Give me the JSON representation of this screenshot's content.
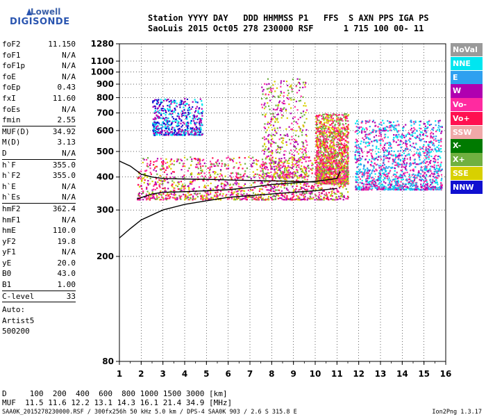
{
  "logo": {
    "line1": "Lowell",
    "line2": "DIGISONDE"
  },
  "header": {
    "line1": "Station YYYY DAY   DDD HHMMSS P1   FFS  S AXN PPS IGA PS",
    "line2": "SaoLuis 2015 Oct05 278 230000 RSF      1 715 100 00- 11"
  },
  "params": [
    {
      "k": "foF2",
      "v": "11.150"
    },
    {
      "k": "foF1",
      "v": "N/A"
    },
    {
      "k": "foF1p",
      "v": "N/A"
    },
    {
      "k": "foE",
      "v": "N/A"
    },
    {
      "k": "foEp",
      "v": "0.43"
    },
    {
      "k": "fxI",
      "v": "11.60"
    },
    {
      "k": "foEs",
      "v": "N/A"
    },
    {
      "k": "fmin",
      "v": "2.55"
    },
    {
      "sep": true
    },
    {
      "k": "MUF(D)",
      "v": "34.92"
    },
    {
      "k": "M(D)",
      "v": "3.13"
    },
    {
      "k": "D",
      "v": "N/A"
    },
    {
      "sep": true
    },
    {
      "k": "h`F",
      "v": "355.0"
    },
    {
      "k": "h`F2",
      "v": "355.0"
    },
    {
      "k": "h`E",
      "v": "N/A"
    },
    {
      "k": "h`Es",
      "v": "N/A"
    },
    {
      "sep": true
    },
    {
      "k": "hmF2",
      "v": "362.4"
    },
    {
      "k": "hmF1",
      "v": "N/A"
    },
    {
      "k": "hmE",
      "v": "110.0"
    },
    {
      "k": "yF2",
      "v": "19.8"
    },
    {
      "k": "yF1",
      "v": "N/A"
    },
    {
      "k": "yE",
      "v": "20.0"
    },
    {
      "k": "B0",
      "v": "43.0"
    },
    {
      "k": "B1",
      "v": "1.00"
    },
    {
      "sep": true
    },
    {
      "k": "C-level",
      "v": "33"
    },
    {
      "sep": true
    }
  ],
  "auto": [
    "Auto:",
    "Artist5",
    "500200"
  ],
  "legend": [
    {
      "label": "NoVal",
      "color": "#9a9a9a"
    },
    {
      "label": "NNE",
      "color": "#00e6f0"
    },
    {
      "label": "E",
      "color": "#2ea0f0"
    },
    {
      "label": "W",
      "color": "#b000b0"
    },
    {
      "label": "Vo-",
      "color": "#ff2aa0"
    },
    {
      "label": "Vo+",
      "color": "#ff1050"
    },
    {
      "label": "SSW",
      "color": "#f0a8a8"
    },
    {
      "label": "X-",
      "color": "#007a00"
    },
    {
      "label": "X+",
      "color": "#70b040"
    },
    {
      "label": "SSE",
      "color": "#d8d000"
    },
    {
      "label": "NNW",
      "color": "#1010d0"
    }
  ],
  "bottom": {
    "line1": "D     100  200  400  600  800 1000 1500 3000 [km]",
    "line2": "MUF  11.5 11.6 12.2 13.1 14.3 16.1 21.4 34.9 [MHz]"
  },
  "footer": {
    "left": "SAA0K_2015278230000.RSF / 300fx256h 50 kHz 5.0 km / DPS-4 SAA0K 903 / 2.6 S 315.8 E",
    "right": "Ion2Png 1.3.17"
  },
  "chart_data": {
    "type": "scatter",
    "title": "",
    "xlabel": "",
    "ylabel": "",
    "xlim": [
      1,
      16
    ],
    "ylim": [
      80,
      1280
    ],
    "y_scale": "log",
    "x_ticks": [
      1,
      2,
      3,
      4,
      5,
      6,
      7,
      8,
      9,
      10,
      11,
      12,
      13,
      14,
      15,
      16
    ],
    "y_ticks": [
      80,
      200,
      300,
      400,
      500,
      600,
      700,
      800,
      900,
      1000,
      1100,
      1280
    ],
    "grid": false,
    "legend_position": "right",
    "echo_regions": [
      {
        "freq_range": [
          1.8,
          11.5
        ],
        "height_range": [
          330,
          480
        ],
        "density": "high",
        "colors": [
          "Vo-",
          "Vo+",
          "W",
          "X+",
          "SSE"
        ]
      },
      {
        "freq_range": [
          2.5,
          4.8
        ],
        "height_range": [
          580,
          800
        ],
        "density": "medium",
        "colors": [
          "W",
          "NNW",
          "NNE"
        ]
      },
      {
        "freq_range": [
          7.5,
          9.6
        ],
        "height_range": [
          400,
          960
        ],
        "density": "medium",
        "colors": [
          "W",
          "Vo-",
          "X+",
          "SSE"
        ]
      },
      {
        "freq_range": [
          10,
          11.5
        ],
        "height_range": [
          380,
          700
        ],
        "density": "high",
        "colors": [
          "Vo+",
          "Vo-",
          "X+",
          "SSE"
        ]
      },
      {
        "freq_range": [
          11.8,
          15.8
        ],
        "height_range": [
          360,
          660
        ],
        "density": "high",
        "colors": [
          "NNE",
          "E",
          "Vo-",
          "W"
        ]
      }
    ],
    "series": [
      {
        "name": "O-trace",
        "x": [
          1.8,
          2.5,
          3,
          4,
          5,
          6,
          7,
          8,
          9,
          10,
          11,
          11.15
        ],
        "y": [
          330,
          345,
          350,
          352,
          355,
          358,
          365,
          375,
          380,
          385,
          395,
          420
        ]
      },
      {
        "name": "profile",
        "x": [
          1,
          1.5,
          2,
          3,
          4,
          5,
          6,
          7,
          8,
          9,
          10,
          11
        ],
        "y": [
          235,
          255,
          275,
          300,
          315,
          325,
          335,
          340,
          345,
          350,
          355,
          362
        ]
      },
      {
        "name": "X-trace",
        "x": [
          1,
          1.5,
          2,
          2.5,
          3,
          4,
          5,
          6,
          7,
          8,
          9,
          10
        ],
        "y": [
          460,
          440,
          410,
          400,
          395,
          393,
          392,
          390,
          388,
          387,
          385,
          383
        ]
      }
    ]
  }
}
